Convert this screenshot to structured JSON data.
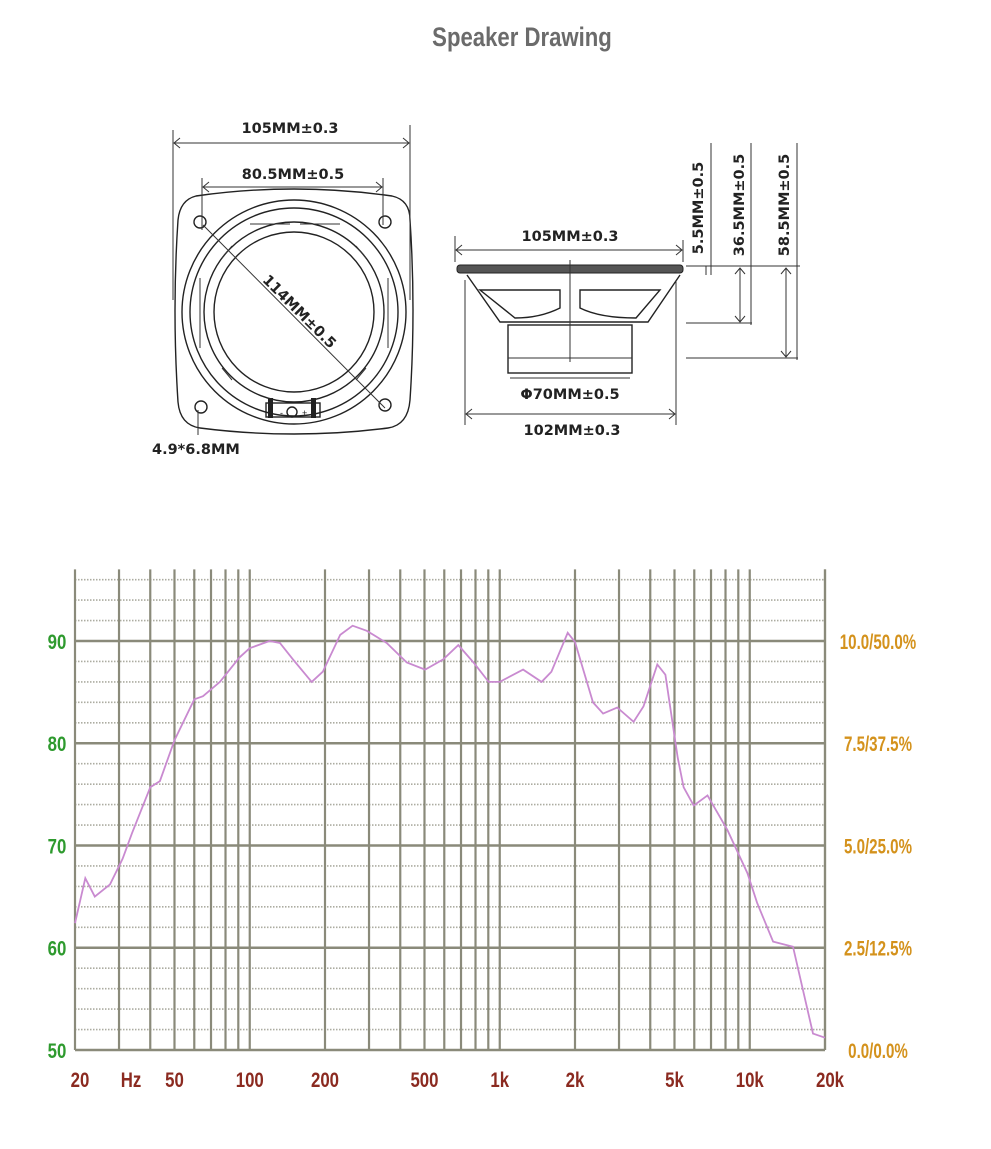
{
  "title": "Speaker Drawing",
  "drawing": {
    "front_view": {
      "outer_width": "105MM±0.3",
      "hole_spacing": "80.5MM±0.5",
      "diagonal": "114MM±0.5",
      "mount_hole": "4.9*6.8MM",
      "terminal_minus": "-",
      "terminal_plus": "+"
    },
    "side_view": {
      "flange_width": "105MM±0.3",
      "magnet_diameter": "Φ70MM±0.5",
      "basket_width": "102MM±0.3",
      "flange_height": "5.5MM±0.5",
      "mounting_depth": "36.5MM±0.5",
      "total_depth": "58.5MM±0.5"
    }
  },
  "colors": {
    "curve": "#c98ad0",
    "grid": "#8a8a7a",
    "left_axis": "#2e9a2e",
    "right_axis": "#d4921c",
    "x_axis": "#8b2a20",
    "title": "#6b6b6b"
  },
  "chart_data": {
    "type": "line",
    "x_scale": "log",
    "xlim": [
      20,
      20000
    ],
    "ylim": [
      50,
      97
    ],
    "grid": true,
    "x_unit_label": "Hz",
    "x_ticks": [
      {
        "value": 20,
        "label": "20"
      },
      {
        "value": 50,
        "label": "50"
      },
      {
        "value": 100,
        "label": "100"
      },
      {
        "value": 200,
        "label": "200"
      },
      {
        "value": 500,
        "label": "500"
      },
      {
        "value": 1000,
        "label": "1k"
      },
      {
        "value": 2000,
        "label": "2k"
      },
      {
        "value": 5000,
        "label": "5k"
      },
      {
        "value": 10000,
        "label": "10k"
      },
      {
        "value": 20000,
        "label": "20k"
      }
    ],
    "y_ticks_left": [
      {
        "value": 90,
        "label": "90"
      },
      {
        "value": 80,
        "label": "80"
      },
      {
        "value": 70,
        "label": "70"
      },
      {
        "value": 60,
        "label": "60"
      },
      {
        "value": 50,
        "label": "50"
      }
    ],
    "y_ticks_right": [
      {
        "value": 90,
        "label": "10.0/50.0%"
      },
      {
        "value": 80,
        "label": "7.5/37.5%"
      },
      {
        "value": 70,
        "label": "5.0/25.0%"
      },
      {
        "value": 60,
        "label": "2.5/12.5%"
      },
      {
        "value": 50,
        "label": "0.0/0.0%"
      }
    ],
    "series": [
      {
        "x": [
          20,
          22,
          24,
          27.6,
          31,
          33.8,
          40,
          43.7,
          50,
          60,
          65,
          76,
          91,
          100,
          120,
          132,
          149,
          177,
          196,
          230,
          258,
          294,
          353,
          425,
          503,
          594,
          683,
          785,
          903,
          1000,
          1240,
          1470,
          1610,
          1870,
          2000,
          2360,
          2590,
          2950,
          3430,
          3760,
          4270,
          4600,
          5150,
          5440,
          5970,
          6780,
          8150,
          9790,
          10700,
          12400,
          14900,
          17900,
          20000
        ],
        "y": [
          62.4,
          66.8,
          65,
          66.2,
          68.7,
          71.2,
          75.7,
          76.3,
          80.3,
          84.3,
          84.6,
          86,
          88.4,
          89.3,
          90,
          89.8,
          88.2,
          86,
          87,
          90.6,
          91.5,
          91,
          89.8,
          87.9,
          87.2,
          88.2,
          89.6,
          87.9,
          86,
          86,
          87.2,
          86,
          87,
          90.8,
          89.9,
          84,
          82.9,
          83.5,
          82.1,
          83.6,
          87.7,
          86.7,
          78.6,
          75.7,
          73.9,
          74.9,
          71.5,
          67.3,
          64.4,
          60.6,
          60.1,
          51.6,
          51.2
        ]
      }
    ]
  }
}
